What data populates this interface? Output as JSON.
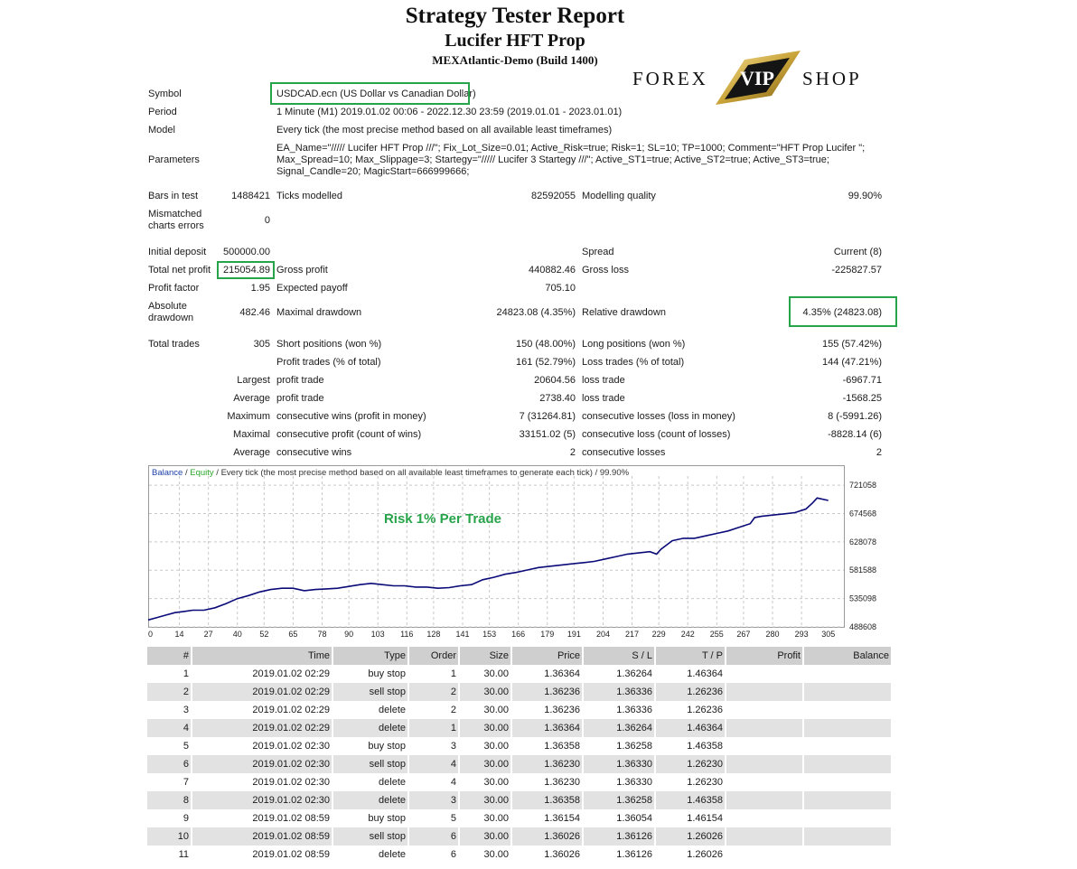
{
  "header": {
    "title": "Strategy Tester Report",
    "ea_name": "Lucifer HFT Prop",
    "server": "MEXAtlantic-Demo (Build 1400)"
  },
  "logo": {
    "left": "FOREX",
    "center": "VIP",
    "right": "SHOP"
  },
  "info": {
    "symbol_label": "Symbol",
    "symbol": "USDCAD.ecn (US Dollar vs Canadian Dollar)",
    "period_label": "Period",
    "period": "1 Minute (M1) 2019.01.02 00:06 - 2022.12.30 23:59 (2019.01.01 - 2023.01.01)",
    "model_label": "Model",
    "model": "Every tick (the most precise method based on all available least timeframes)",
    "parameters_label": "Parameters",
    "parameters_line1": "EA_Name=\"///// Lucifer HFT Prop ///\"; Fix_Lot_Size=0.01; Active_Risk=true; Risk=1; SL=10; TP=1000; Comment=\"HFT Prop Lucifer \";",
    "parameters_line2": "Max_Spread=10; Max_Slippage=3; Startegy=\"///// Lucifer 3 Startegy ///\"; Active_ST1=true; Active_ST2=true; Active_ST3=true;",
    "parameters_line3": "Signal_Candle=20; MagicStart=666999666;"
  },
  "stats": {
    "bars_label": "Bars in test",
    "bars": "1488421",
    "ticks_label": "Ticks modelled",
    "ticks": "82592055",
    "quality_label": "Modelling quality",
    "quality": "99.90%",
    "mismatch_label_1": "Mismatched",
    "mismatch_label_2": "charts errors",
    "mismatch": "0",
    "deposit_label": "Initial deposit",
    "deposit": "500000.00",
    "spread_label": "Spread",
    "spread": "Current (8)",
    "net_label": "Total net profit",
    "net": "215054.89",
    "gross_profit_label": "Gross profit",
    "gross_profit": "440882.46",
    "gross_loss_label": "Gross loss",
    "gross_loss": "-225827.57",
    "pf_label": "Profit factor",
    "pf": "1.95",
    "payoff_label": "Expected payoff",
    "payoff": "705.10",
    "abs_dd_label_1": "Absolute",
    "abs_dd_label_2": "drawdown",
    "abs_dd": "482.46",
    "max_dd_label": "Maximal drawdown",
    "max_dd": "24823.08 (4.35%)",
    "rel_dd_label": "Relative drawdown",
    "rel_dd": "4.35% (24823.08)",
    "trades_label": "Total trades",
    "trades": "305",
    "short_label": "Short positions (won %)",
    "short": "150 (48.00%)",
    "long_label": "Long positions (won %)",
    "long": "155 (57.42%)",
    "profit_trades_label": "Profit trades (% of total)",
    "profit_trades": "161 (52.79%)",
    "loss_trades_label": "Loss trades (% of total)",
    "loss_trades": "144 (47.21%)",
    "largest_label": "Largest",
    "largest_profit_label": "profit trade",
    "largest_profit": "20604.56",
    "largest_loss_label": "loss trade",
    "largest_loss": "-6967.71",
    "average_label": "Average",
    "average_profit_label": "profit trade",
    "average_profit": "2738.40",
    "average_loss_label": "loss trade",
    "average_loss": "-1568.25",
    "maximum_label": "Maximum",
    "max_cons_wins_label": "consecutive wins (profit in money)",
    "max_cons_wins": "7 (31264.81)",
    "max_cons_losses_label": "consecutive losses (loss in money)",
    "max_cons_losses": "8 (-5991.26)",
    "maximal_label": "Maximal",
    "maximal_profit_label": "consecutive profit (count of wins)",
    "maximal_profit": "33151.02 (5)",
    "maximal_loss_label": "consecutive loss (count of losses)",
    "maximal_loss": "-8828.14 (6)",
    "avg_cons_label": "Average",
    "avg_cons_wins_label": "consecutive wins",
    "avg_cons_wins": "2",
    "avg_cons_losses_label": "consecutive losses",
    "avg_cons_losses": "2"
  },
  "chart_data": {
    "type": "line",
    "legend_balance": "Balance",
    "legend_sep": " / ",
    "legend_equity": "Equity",
    "legend_rest": " / Every tick (the most precise method based on all available least timeframes to generate each tick)  /  99.90%",
    "annotation": "Risk 1% Per Trade",
    "x_ticks": [
      "0",
      "14",
      "27",
      "40",
      "52",
      "65",
      "78",
      "90",
      "103",
      "116",
      "128",
      "141",
      "153",
      "166",
      "179",
      "191",
      "204",
      "217",
      "229",
      "242",
      "255",
      "267",
      "280",
      "293",
      "305"
    ],
    "y_ticks": [
      "721058",
      "674568",
      "628078",
      "581588",
      "535098",
      "488608"
    ],
    "ylim": [
      488608,
      736000
    ],
    "xlim": [
      0,
      312
    ],
    "series": [
      {
        "x": [
          0,
          4,
          8,
          12,
          16,
          20,
          25,
          30,
          35,
          40,
          45,
          50,
          55,
          60,
          65,
          70,
          75,
          80,
          85,
          90,
          95,
          100,
          105,
          110,
          115,
          120,
          125,
          130,
          135,
          140,
          145,
          150,
          155,
          160,
          165,
          170,
          175,
          180,
          185,
          190,
          195,
          200,
          205,
          210,
          215,
          220,
          225,
          228,
          230,
          235,
          240,
          245,
          250,
          255,
          260,
          265,
          270,
          272,
          275,
          280,
          285,
          290,
          295,
          298,
          300,
          305
        ],
        "y": [
          500000,
          504000,
          508000,
          512000,
          514000,
          516000,
          516000,
          520000,
          527000,
          535000,
          540000,
          546000,
          550000,
          552000,
          552000,
          548000,
          550000,
          551000,
          552000,
          555000,
          558000,
          560000,
          558000,
          556000,
          556000,
          554000,
          554000,
          552000,
          553000,
          556000,
          558000,
          566000,
          570000,
          575000,
          578000,
          582000,
          586000,
          588000,
          590000,
          592000,
          594000,
          596000,
          600000,
          604000,
          608000,
          610000,
          612000,
          608000,
          616000,
          630000,
          634000,
          634000,
          638000,
          642000,
          646000,
          652000,
          658000,
          668000,
          670000,
          672000,
          674000,
          676000,
          682000,
          692000,
          700000,
          696000
        ]
      }
    ]
  },
  "orders": {
    "headers": [
      "#",
      "Time",
      "Type",
      "Order",
      "Size",
      "Price",
      "S / L",
      "T / P",
      "Profit",
      "Balance"
    ],
    "rows": [
      [
        "1",
        "2019.01.02 02:29",
        "buy stop",
        "1",
        "30.00",
        "1.36364",
        "1.36264",
        "1.46364",
        "",
        ""
      ],
      [
        "2",
        "2019.01.02 02:29",
        "sell stop",
        "2",
        "30.00",
        "1.36236",
        "1.36336",
        "1.26236",
        "",
        ""
      ],
      [
        "3",
        "2019.01.02 02:29",
        "delete",
        "2",
        "30.00",
        "1.36236",
        "1.36336",
        "1.26236",
        "",
        ""
      ],
      [
        "4",
        "2019.01.02 02:29",
        "delete",
        "1",
        "30.00",
        "1.36364",
        "1.36264",
        "1.46364",
        "",
        ""
      ],
      [
        "5",
        "2019.01.02 02:30",
        "buy stop",
        "3",
        "30.00",
        "1.36358",
        "1.36258",
        "1.46358",
        "",
        ""
      ],
      [
        "6",
        "2019.01.02 02:30",
        "sell stop",
        "4",
        "30.00",
        "1.36230",
        "1.36330",
        "1.26230",
        "",
        ""
      ],
      [
        "7",
        "2019.01.02 02:30",
        "delete",
        "4",
        "30.00",
        "1.36230",
        "1.36330",
        "1.26230",
        "",
        ""
      ],
      [
        "8",
        "2019.01.02 02:30",
        "delete",
        "3",
        "30.00",
        "1.36358",
        "1.36258",
        "1.46358",
        "",
        ""
      ],
      [
        "9",
        "2019.01.02 08:59",
        "buy stop",
        "5",
        "30.00",
        "1.36154",
        "1.36054",
        "1.46154",
        "",
        ""
      ],
      [
        "10",
        "2019.01.02 08:59",
        "sell stop",
        "6",
        "30.00",
        "1.36026",
        "1.36126",
        "1.26026",
        "",
        ""
      ],
      [
        "11",
        "2019.01.02 08:59",
        "delete",
        "6",
        "30.00",
        "1.36026",
        "1.36126",
        "1.26026",
        "",
        ""
      ]
    ]
  },
  "colors": {
    "highlight": "#27a34a",
    "balance_line": "#0a0a78",
    "grid": "#c8c8c8",
    "header_bg": "#cfcfcf",
    "alt_row": "#e2e2e2",
    "annotation": "#27a34a"
  }
}
